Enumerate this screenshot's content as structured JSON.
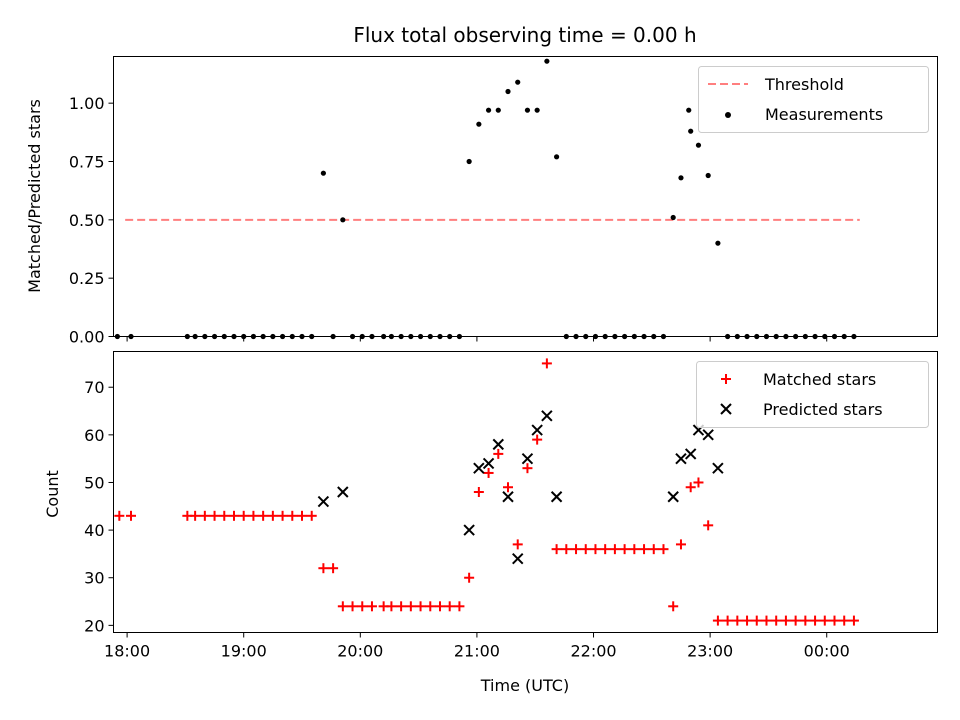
{
  "chart_data": [
    {
      "type": "scatter",
      "title": "Flux total observing time = 0.00 h",
      "xlabel": "",
      "ylabel": "Matched/Predicted stars",
      "xlim": [
        "17:53",
        "00:57"
      ],
      "ylim": [
        0.0,
        1.2
      ],
      "yticks": [
        "0.00",
        "0.25",
        "0.50",
        "0.75",
        "1.00"
      ],
      "xticks": [
        "18:00",
        "19:00",
        "20:00",
        "21:00",
        "22:00",
        "23:00",
        "00:00"
      ],
      "show_xticklabels": false,
      "grid": false,
      "legend_position": "top-right",
      "threshold": {
        "name": "Threshold",
        "color": "#ff7f7f",
        "style": "dashed",
        "value": 0.5,
        "x_start": "17:59",
        "x_end": "00:17"
      },
      "series": [
        {
          "name": "Measurements",
          "color": "#000000",
          "marker": "dot",
          "points": [
            [
              "17:55",
              0
            ],
            [
              "18:02",
              0
            ],
            [
              "18:31",
              0
            ],
            [
              "18:35",
              0
            ],
            [
              "18:40",
              0
            ],
            [
              "18:45",
              0
            ],
            [
              "18:50",
              0
            ],
            [
              "18:55",
              0
            ],
            [
              "19:00",
              0
            ],
            [
              "19:05",
              0
            ],
            [
              "19:10",
              0
            ],
            [
              "19:15",
              0
            ],
            [
              "19:20",
              0
            ],
            [
              "19:25",
              0
            ],
            [
              "19:30",
              0
            ],
            [
              "19:35",
              0
            ],
            [
              "19:41",
              0.7
            ],
            [
              "19:46",
              0
            ],
            [
              "19:51",
              0.5
            ],
            [
              "19:56",
              0
            ],
            [
              "20:01",
              0
            ],
            [
              "20:06",
              0
            ],
            [
              "20:12",
              0
            ],
            [
              "20:16",
              0
            ],
            [
              "20:21",
              0
            ],
            [
              "20:26",
              0
            ],
            [
              "20:31",
              0
            ],
            [
              "20:36",
              0
            ],
            [
              "20:41",
              0
            ],
            [
              "20:46",
              0
            ],
            [
              "20:51",
              0
            ],
            [
              "20:56",
              0.75
            ],
            [
              "21:01",
              0.91
            ],
            [
              "21:06",
              0.97
            ],
            [
              "21:11",
              0.97
            ],
            [
              "21:16",
              1.05
            ],
            [
              "21:21",
              1.09
            ],
            [
              "21:26",
              0.97
            ],
            [
              "21:31",
              0.97
            ],
            [
              "21:36",
              1.18
            ],
            [
              "21:41",
              0.77
            ],
            [
              "21:46",
              0
            ],
            [
              "21:51",
              0
            ],
            [
              "21:56",
              0
            ],
            [
              "22:01",
              0
            ],
            [
              "22:06",
              0
            ],
            [
              "22:11",
              0
            ],
            [
              "22:16",
              0
            ],
            [
              "22:21",
              0
            ],
            [
              "22:26",
              0
            ],
            [
              "22:31",
              0
            ],
            [
              "22:36",
              0
            ],
            [
              "22:41",
              0.51
            ],
            [
              "22:45",
              0.68
            ],
            [
              "22:49",
              0.97
            ],
            [
              "22:50",
              0.88
            ],
            [
              "22:54",
              0.82
            ],
            [
              "22:59",
              0.69
            ],
            [
              "23:04",
              0.4
            ],
            [
              "23:09",
              0
            ],
            [
              "23:14",
              0
            ],
            [
              "23:19",
              0
            ],
            [
              "23:24",
              0
            ],
            [
              "23:29",
              0
            ],
            [
              "23:34",
              0
            ],
            [
              "23:39",
              0
            ],
            [
              "23:44",
              0
            ],
            [
              "23:49",
              0
            ],
            [
              "23:54",
              0
            ],
            [
              "23:59",
              0
            ],
            [
              "00:04",
              0
            ],
            [
              "00:09",
              0
            ],
            [
              "00:14",
              0
            ]
          ]
        }
      ]
    },
    {
      "type": "scatter",
      "title": "",
      "xlabel": "Time (UTC)",
      "ylabel": "Count",
      "xlim": [
        "17:53",
        "00:57"
      ],
      "ylim": [
        18.5,
        77.5
      ],
      "yticks": [
        "20",
        "30",
        "40",
        "50",
        "60",
        "70"
      ],
      "xticks": [
        "18:00",
        "19:00",
        "20:00",
        "21:00",
        "22:00",
        "23:00",
        "00:00"
      ],
      "show_xticklabels": true,
      "grid": false,
      "legend_position": "top-right",
      "series": [
        {
          "name": "Matched stars",
          "color": "#ff0000",
          "marker": "plus",
          "points": [
            [
              "17:56",
              43
            ],
            [
              "18:02",
              43
            ],
            [
              "18:31",
              43
            ],
            [
              "18:35",
              43
            ],
            [
              "18:40",
              43
            ],
            [
              "18:45",
              43
            ],
            [
              "18:50",
              43
            ],
            [
              "18:55",
              43
            ],
            [
              "19:00",
              43
            ],
            [
              "19:05",
              43
            ],
            [
              "19:10",
              43
            ],
            [
              "19:15",
              43
            ],
            [
              "19:20",
              43
            ],
            [
              "19:25",
              43
            ],
            [
              "19:30",
              43
            ],
            [
              "19:35",
              43
            ],
            [
              "19:41",
              32
            ],
            [
              "19:46",
              32
            ],
            [
              "19:51",
              24
            ],
            [
              "19:56",
              24
            ],
            [
              "20:01",
              24
            ],
            [
              "20:06",
              24
            ],
            [
              "20:12",
              24
            ],
            [
              "20:16",
              24
            ],
            [
              "20:21",
              24
            ],
            [
              "20:26",
              24
            ],
            [
              "20:31",
              24
            ],
            [
              "20:36",
              24
            ],
            [
              "20:41",
              24
            ],
            [
              "20:46",
              24
            ],
            [
              "20:51",
              24
            ],
            [
              "20:56",
              30
            ],
            [
              "21:01",
              48
            ],
            [
              "21:06",
              52
            ],
            [
              "21:11",
              56
            ],
            [
              "21:16",
              49
            ],
            [
              "21:21",
              37
            ],
            [
              "21:26",
              53
            ],
            [
              "21:31",
              59
            ],
            [
              "21:36",
              75
            ],
            [
              "21:41",
              36
            ],
            [
              "21:46",
              36
            ],
            [
              "21:51",
              36
            ],
            [
              "21:56",
              36
            ],
            [
              "22:01",
              36
            ],
            [
              "22:06",
              36
            ],
            [
              "22:11",
              36
            ],
            [
              "22:16",
              36
            ],
            [
              "22:21",
              36
            ],
            [
              "22:26",
              36
            ],
            [
              "22:31",
              36
            ],
            [
              "22:36",
              36
            ],
            [
              "22:41",
              24
            ],
            [
              "22:45",
              37
            ],
            [
              "22:50",
              49
            ],
            [
              "22:54",
              50
            ],
            [
              "22:59",
              41
            ],
            [
              "23:04",
              21
            ],
            [
              "23:09",
              21
            ],
            [
              "23:14",
              21
            ],
            [
              "23:19",
              21
            ],
            [
              "23:24",
              21
            ],
            [
              "23:29",
              21
            ],
            [
              "23:34",
              21
            ],
            [
              "23:39",
              21
            ],
            [
              "23:44",
              21
            ],
            [
              "23:49",
              21
            ],
            [
              "23:54",
              21
            ],
            [
              "23:59",
              21
            ],
            [
              "00:04",
              21
            ],
            [
              "00:09",
              21
            ],
            [
              "00:14",
              21
            ]
          ]
        },
        {
          "name": "Predicted stars",
          "color": "#000000",
          "marker": "x",
          "points": [
            [
              "19:41",
              46
            ],
            [
              "19:51",
              48
            ],
            [
              "20:56",
              40
            ],
            [
              "21:01",
              53
            ],
            [
              "21:06",
              54
            ],
            [
              "21:11",
              58
            ],
            [
              "21:16",
              47
            ],
            [
              "21:21",
              34
            ],
            [
              "21:26",
              55
            ],
            [
              "21:31",
              61
            ],
            [
              "21:36",
              64
            ],
            [
              "21:41",
              47
            ],
            [
              "22:41",
              47
            ],
            [
              "22:45",
              55
            ],
            [
              "22:50",
              56
            ],
            [
              "22:54",
              61
            ],
            [
              "22:59",
              60
            ],
            [
              "23:04",
              53
            ]
          ]
        }
      ]
    }
  ]
}
